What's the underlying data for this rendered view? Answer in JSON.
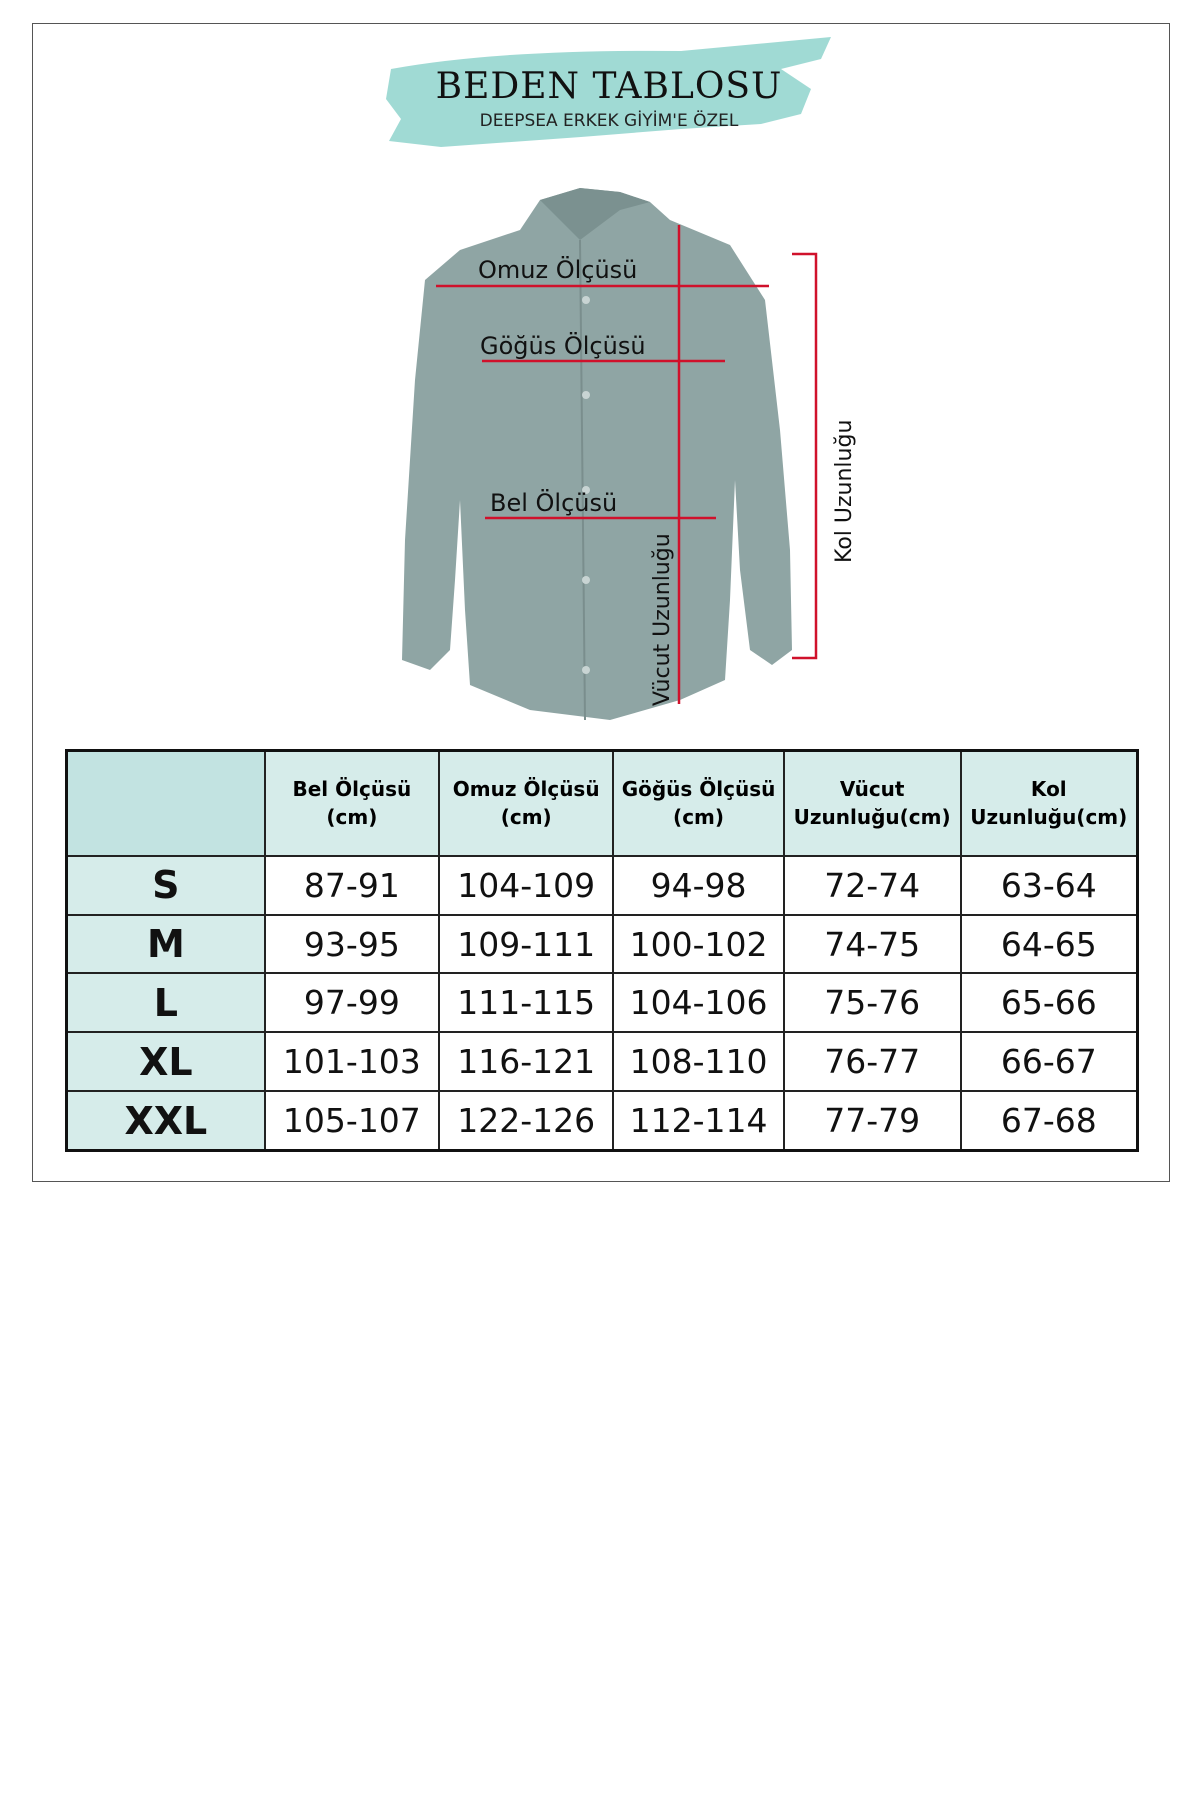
{
  "header": {
    "title": "BEDEN TABLOSU",
    "subtitle": "DEEPSEA ERKEK GİYİM'E ÖZEL",
    "brush_color": "#8fd3cc"
  },
  "diagram": {
    "labels": {
      "shoulder": "Omuz Ölçüsü",
      "chest": "Göğüs Ölçüsü",
      "waist": "Bel Ölçüsü",
      "body_length": "Vücut Uzunluğu",
      "sleeve_length": "Kol Uzunluğu"
    },
    "line_color": "#d0112b",
    "shirt_color": "#8fa5a4"
  },
  "table": {
    "headers": [
      "",
      "Bel Ölçüsü (cm)",
      "Omuz Ölçüsü (cm)",
      "Göğüs Ölçüsü (cm)",
      "Vücut Uzunluğu(cm)",
      "Kol Uzunluğu(cm)"
    ],
    "rows": [
      [
        "S",
        "87-91",
        "104-109",
        "94-98",
        "72-74",
        "63-64"
      ],
      [
        "M",
        "93-95",
        "109-111",
        "100-102",
        "74-75",
        "64-65"
      ],
      [
        "L",
        "97-99",
        "111-115",
        "104-106",
        "75-76",
        "65-66"
      ],
      [
        "XL",
        "101-103",
        "116-121",
        "108-110",
        "76-77",
        "66-67"
      ],
      [
        "XXL",
        "105-107",
        "122-126",
        "112-114",
        "77-79",
        "67-68"
      ]
    ]
  }
}
